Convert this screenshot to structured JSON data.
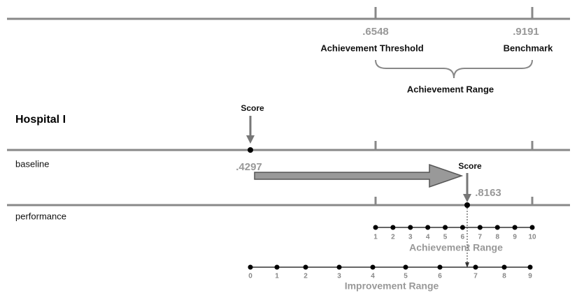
{
  "top": {
    "threshold_value": ".6548",
    "benchmark_value": ".9191",
    "threshold_label": "Achievement Threshold",
    "benchmark_label": "Benchmark",
    "range_label": "Achievement Range"
  },
  "hospital": {
    "name": "Hospital I",
    "baseline_score_label": "Score",
    "baseline_row": "baseline",
    "baseline_value": ".4297",
    "performance_score_label": "Score",
    "performance_value": ".8163",
    "performance_row": "performance"
  },
  "achievement_scale": {
    "points": [
      "1",
      "2",
      "3",
      "4",
      "5",
      "6",
      "7",
      "8",
      "9",
      "10"
    ],
    "label": "Achievement Range"
  },
  "improvement_scale": {
    "points": [
      "0",
      "1",
      "2",
      "3",
      "4",
      "5",
      "6",
      "7",
      "8",
      "9"
    ],
    "label": "Improvement Range"
  }
}
